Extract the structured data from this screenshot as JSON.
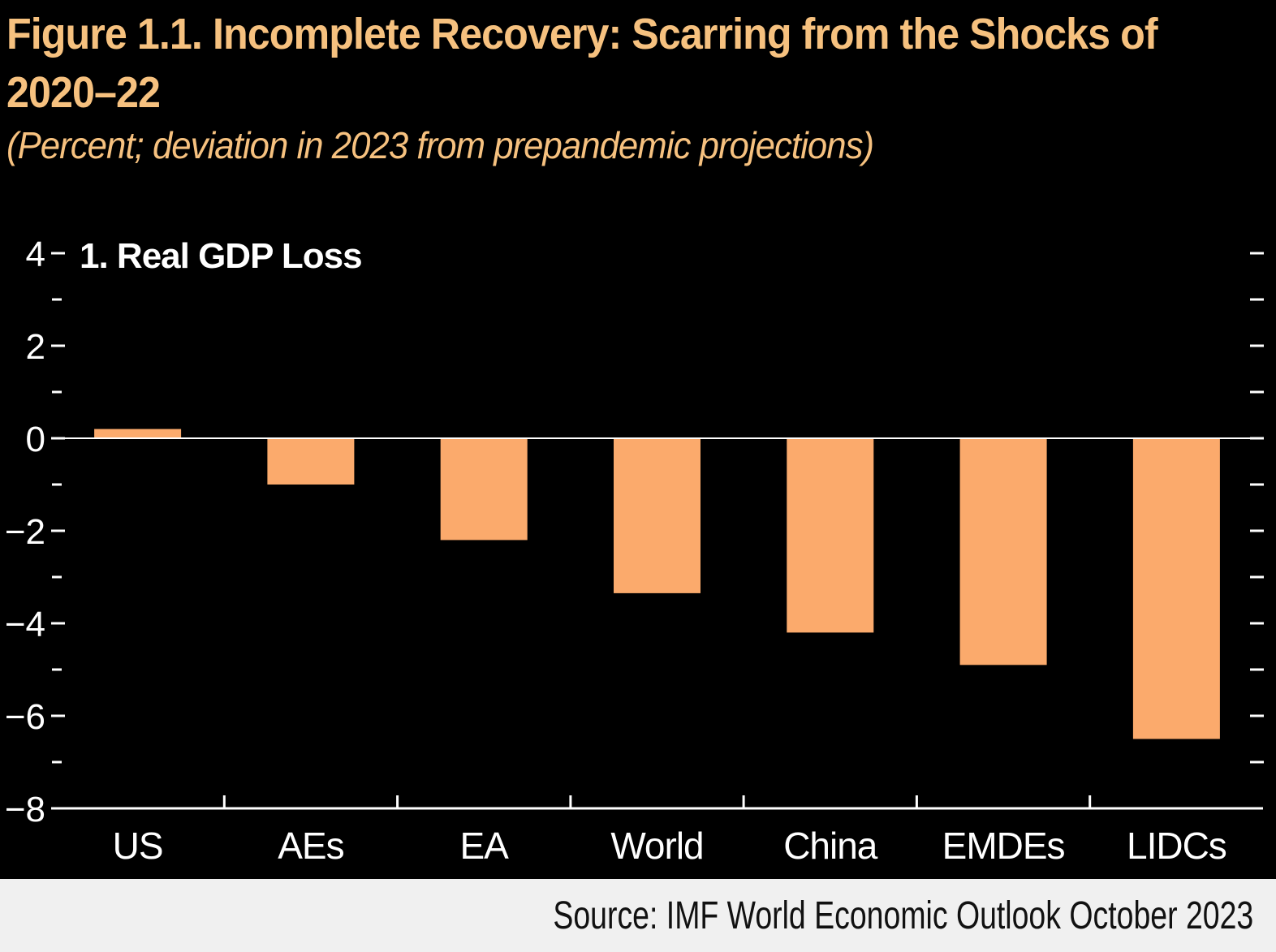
{
  "figure": {
    "title": "Figure 1.1.  Incomplete Recovery: Scarring from the Shocks of 2020–22",
    "subtitle": "(Percent; deviation in 2023 from prepandemic projections)"
  },
  "chart_data": {
    "type": "bar",
    "panel_title": "1. Real GDP Loss",
    "categories": [
      "US",
      "AEs",
      "EA",
      "World",
      "China",
      "EMDEs",
      "LIDCs"
    ],
    "values": [
      0.2,
      -1.0,
      -2.2,
      -3.35,
      -4.2,
      -4.9,
      -6.5
    ],
    "ylim": [
      -8,
      4
    ],
    "yticks": [
      4,
      2,
      0,
      -2,
      -4,
      -6,
      -8
    ],
    "ytick_labels": [
      "4",
      "2",
      "0",
      "−2",
      "−4",
      "−6",
      "−8"
    ],
    "xlabel": "",
    "ylabel": "",
    "grid": false,
    "colors": {
      "bar": "#fbaa6c",
      "axis": "#ffffff",
      "text": "#ffffff"
    }
  },
  "source": "Source: IMF World Economic Outlook October 2023"
}
